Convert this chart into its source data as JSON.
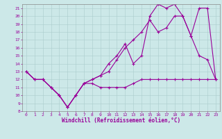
{
  "xlabel": "Windchill (Refroidissement éolien,°C)",
  "bg_color": "#cce8e8",
  "line_color": "#990099",
  "grid_color": "#aacccc",
  "xlim": [
    -0.5,
    23.5
  ],
  "ylim": [
    8,
    21.5
  ],
  "yticks": [
    8,
    9,
    10,
    11,
    12,
    13,
    14,
    15,
    16,
    17,
    18,
    19,
    20,
    21
  ],
  "xticks": [
    0,
    1,
    2,
    3,
    4,
    5,
    6,
    7,
    8,
    9,
    10,
    11,
    12,
    13,
    14,
    15,
    16,
    17,
    18,
    19,
    20,
    21,
    22,
    23
  ],
  "line1_x": [
    0,
    1,
    2,
    3,
    4,
    5,
    6,
    7,
    8,
    9,
    10,
    11,
    12,
    13,
    14,
    15,
    16,
    17,
    18,
    19,
    20,
    21,
    22,
    23
  ],
  "line1_y": [
    13,
    12,
    12,
    11,
    10,
    8.5,
    10,
    11.5,
    11.5,
    11,
    11,
    11,
    11,
    11.5,
    12,
    12,
    12,
    12,
    12,
    12,
    12,
    12,
    12,
    12
  ],
  "line2_x": [
    0,
    1,
    2,
    3,
    4,
    5,
    6,
    7,
    8,
    9,
    10,
    11,
    12,
    13,
    14,
    15,
    16,
    17,
    18,
    19,
    20,
    21,
    22,
    23
  ],
  "line2_y": [
    13,
    12,
    12,
    11,
    10,
    8.5,
    10,
    11.5,
    12,
    12.5,
    14,
    15,
    16.5,
    14,
    15,
    20,
    21.5,
    21,
    21.5,
    20,
    17.5,
    15,
    14.5,
    12
  ],
  "line3_x": [
    0,
    1,
    2,
    3,
    4,
    5,
    6,
    7,
    8,
    9,
    10,
    11,
    12,
    13,
    14,
    15,
    16,
    17,
    18,
    19,
    20,
    21,
    22,
    23
  ],
  "line3_y": [
    13,
    12,
    12,
    11,
    10,
    8.5,
    10,
    11.5,
    12,
    12.5,
    13,
    14.5,
    16,
    17,
    18,
    19.5,
    18,
    18.5,
    20,
    20,
    17.5,
    21,
    21,
    12
  ],
  "tick_fontsize": 4.5,
  "xlabel_fontsize": 5.5,
  "linewidth": 0.8,
  "markersize": 3,
  "spine_color": "#888888"
}
